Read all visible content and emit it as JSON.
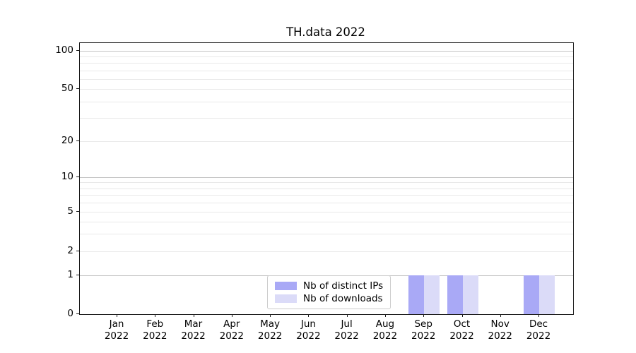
{
  "chart_data": {
    "type": "bar",
    "title": "TH.data 2022",
    "categories": [
      "Jan",
      "Feb",
      "Mar",
      "Apr",
      "May",
      "Jun",
      "Jul",
      "Aug",
      "Sep",
      "Oct",
      "Nov",
      "Dec"
    ],
    "category_year": "2022",
    "series": [
      {
        "name": "Nb of distinct IPs",
        "color": "#a9a9f6",
        "values": [
          0,
          0,
          0,
          0,
          0,
          0,
          0,
          0,
          1,
          1,
          0,
          1
        ]
      },
      {
        "name": "Nb of downloads",
        "color": "#dbdbf8",
        "values": [
          0,
          0,
          0,
          0,
          0,
          0,
          0,
          0,
          1,
          1,
          0,
          1
        ]
      }
    ],
    "y_axis": {
      "scale": "symlog-like (log above 1, linear 0-1)",
      "tick_labels": [
        0,
        1,
        2,
        5,
        10,
        20,
        50,
        100
      ],
      "major_gridlines": [
        1,
        10,
        100
      ],
      "minor_gridlines": [
        2,
        3,
        4,
        5,
        6,
        7,
        8,
        9,
        20,
        30,
        40,
        50,
        60,
        70,
        80,
        90
      ],
      "ylim": [
        0,
        115
      ]
    },
    "legend": {
      "position": "lower-center",
      "entries": [
        {
          "label": "Nb of distinct IPs",
          "color": "#a9a9f6"
        },
        {
          "label": "Nb of downloads",
          "color": "#dbdbf8"
        }
      ]
    },
    "colors": {
      "major_grid": "#c3c3c3",
      "minor_grid": "#e9e9e9",
      "spine": "#1a1a1a",
      "background": "#ffffff"
    }
  }
}
